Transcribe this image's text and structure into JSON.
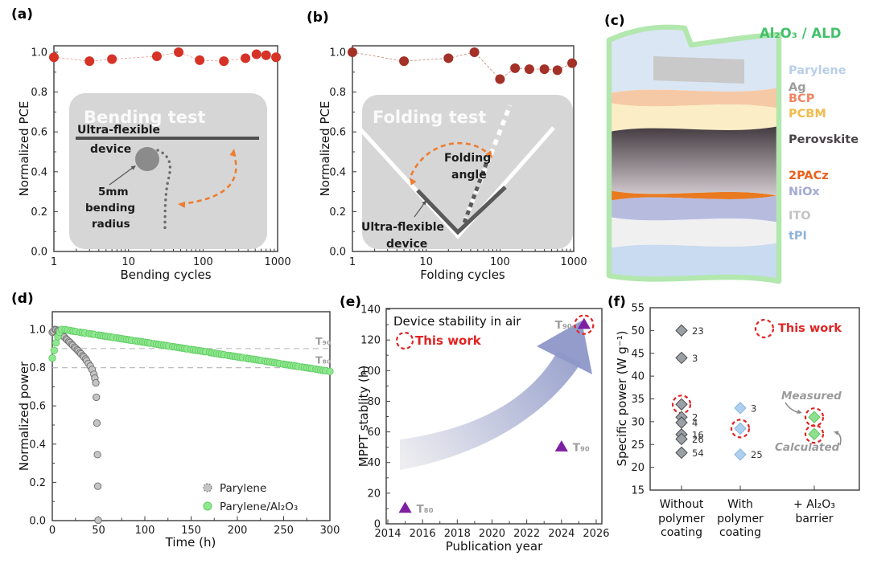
{
  "colors": {
    "accent": "#e02424",
    "frame": "#3c3c3c",
    "inset_bg": "#d6d6d6",
    "orange": "#ed7d31"
  },
  "chart_data": [
    {
      "id": "a",
      "type": "scatter",
      "letter": "(a)",
      "xlabel": "Bending cycles",
      "ylabel": "Normalized PCE",
      "xscale": "log",
      "xticks": [
        "1",
        "10",
        "100",
        "1000"
      ],
      "yticks": [
        "0.0",
        "0.2",
        "0.4",
        "0.6",
        "0.8",
        "1.0"
      ],
      "xlim": [
        1,
        1000
      ],
      "ylim": [
        0,
        1.03
      ],
      "point_color": "#d63226",
      "line_color": "#f0a098",
      "points": [
        [
          1,
          0.975
        ],
        [
          3,
          0.955
        ],
        [
          6,
          0.965
        ],
        [
          24,
          0.98
        ],
        [
          47,
          1.0
        ],
        [
          90,
          0.96
        ],
        [
          190,
          0.955
        ],
        [
          370,
          0.97
        ],
        [
          520,
          0.99
        ],
        [
          700,
          0.985
        ],
        [
          950,
          0.975
        ]
      ],
      "inset": {
        "title": "Bending test",
        "device1": "Ultra-flexible",
        "device2": "device",
        "r1": "5mm",
        "r2": "bending",
        "r3": "radius"
      }
    },
    {
      "id": "b",
      "type": "scatter",
      "letter": "(b)",
      "xlabel": "Folding cycles",
      "ylabel": "Normalized PCE",
      "xscale": "log",
      "xticks": [
        "1",
        "10",
        "100",
        "1000"
      ],
      "yticks": [
        "0.0",
        "0.2",
        "0.4",
        "0.6",
        "0.8",
        "1.0"
      ],
      "xlim": [
        1,
        1000
      ],
      "ylim": [
        0,
        1.03
      ],
      "point_color": "#a33127",
      "line_color": "#cf8d80",
      "points": [
        [
          1,
          1.0
        ],
        [
          5,
          0.955
        ],
        [
          20,
          0.97
        ],
        [
          45,
          1.0
        ],
        [
          100,
          0.865
        ],
        [
          160,
          0.92
        ],
        [
          250,
          0.915
        ],
        [
          400,
          0.915
        ],
        [
          600,
          0.91
        ],
        [
          950,
          0.945
        ]
      ],
      "inset": {
        "title": "Folding test",
        "a1": "Folding",
        "a2": "angle",
        "d1": "Ultra-flexible",
        "d2": "device"
      }
    },
    {
      "id": "c",
      "type": "diagram",
      "letter": "(c)",
      "border_label": "Al₂O₃ / ALD",
      "border_label_color": "#44c06a",
      "border_color": "#b2e7ae",
      "layers": [
        {
          "label": "Parylene",
          "label_color": "#b8cfe8",
          "fill": "#dae6f4"
        },
        {
          "label": "Ag",
          "label_color": "#9d9d9d",
          "fill": "#c9c9c9"
        },
        {
          "label": "BCP",
          "label_color": "#ef8663",
          "fill": "#f6c9a6"
        },
        {
          "label": "PCBM",
          "label_color": "#f2bb4b",
          "fill": "#fbeec6"
        },
        {
          "label": "Perovskite",
          "label_color": "#4a4449",
          "fill_top": "#423a3f",
          "fill_bottom": "#d3cbcf"
        },
        {
          "label": "2PACz",
          "label_color": "#e8611c",
          "fill": "#e97a20"
        },
        {
          "label": "NiOx",
          "label_color": "#a3aad6",
          "fill": "#b7bcdf"
        },
        {
          "label": "ITO",
          "label_color": "#c3c3c6",
          "fill": "#f0f0f1"
        },
        {
          "label": "tPI",
          "label_color": "#8fb3da",
          "fill": "#c8dbf0"
        }
      ]
    },
    {
      "id": "d",
      "type": "line",
      "letter": "(d)",
      "xlabel": "Time (h)",
      "ylabel": "Normalized power",
      "xticks": [
        "0",
        "50",
        "100",
        "150",
        "200",
        "250",
        "300"
      ],
      "yticks": [
        "0.0",
        "0.2",
        "0.4",
        "0.6",
        "0.8",
        "1.0"
      ],
      "xlim": [
        0,
        300
      ],
      "ylim": [
        0,
        1.09
      ],
      "hlines": [
        {
          "y": 0.9,
          "label": "T₉₀"
        },
        {
          "y": 0.8,
          "label": "T₈₀"
        }
      ],
      "series": [
        {
          "name": "Parylene",
          "color": "#c4c4c4",
          "edge": "#6e6e6e",
          "anchors": [
            [
              0,
              0.985
            ],
            [
              3,
              1.0
            ],
            [
              6,
              0.995
            ],
            [
              9,
              0.985
            ],
            [
              12,
              0.965
            ],
            [
              15,
              0.95
            ],
            [
              18,
              0.937
            ],
            [
              21,
              0.922
            ],
            [
              24,
              0.907
            ],
            [
              27,
              0.893
            ],
            [
              30,
              0.878
            ],
            [
              33,
              0.862
            ],
            [
              36,
              0.845
            ],
            [
              39,
              0.822
            ],
            [
              41,
              0.808
            ],
            [
              43,
              0.79
            ],
            [
              45,
              0.765
            ],
            [
              46,
              0.745
            ],
            [
              47,
              0.72
            ],
            [
              47.6,
              0.645
            ],
            [
              48.2,
              0.51
            ],
            [
              48.8,
              0.345
            ],
            [
              49.2,
              0.18
            ],
            [
              49.6,
              0.002
            ]
          ]
        },
        {
          "name": "Parylene/Al₂O₃",
          "color": "#8fe88f",
          "edge": "#63cc66",
          "anchors": [
            [
              0,
              0.85
            ],
            [
              2,
              0.89
            ],
            [
              4,
              0.93
            ],
            [
              6,
              0.962
            ],
            [
              8,
              0.985
            ],
            [
              10,
              1.0
            ],
            [
              14,
              0.999
            ],
            [
              20,
              0.993
            ],
            [
              30,
              0.985
            ],
            [
              40,
              0.978
            ],
            [
              50,
              0.97
            ],
            [
              70,
              0.955
            ],
            [
              90,
              0.94
            ],
            [
              110,
              0.925
            ],
            [
              130,
              0.91
            ],
            [
              150,
              0.895
            ],
            [
              170,
              0.88
            ],
            [
              190,
              0.864
            ],
            [
              210,
              0.849
            ],
            [
              230,
              0.834
            ],
            [
              250,
              0.818
            ],
            [
              270,
              0.803
            ],
            [
              285,
              0.792
            ],
            [
              300,
              0.78
            ]
          ]
        }
      ]
    },
    {
      "id": "e",
      "type": "scatter",
      "letter": "(e)",
      "xlabel": "Publication year",
      "ylabel": "MPPT stablity (h)",
      "note": "Device stability in air",
      "this_work": "This work",
      "xticks": [
        "2014",
        "2016",
        "2018",
        "2020",
        "2022",
        "2024",
        "2026"
      ],
      "yticks": [
        "0",
        "20",
        "40",
        "60",
        "80",
        "100",
        "120",
        "140"
      ],
      "xlim": [
        2014,
        2026
      ],
      "ylim": [
        0,
        140
      ],
      "triangle_color": "#7d1fa0",
      "arrow_colors": [
        "#ededf0",
        "#8d97c8"
      ],
      "points": [
        {
          "year": 2015,
          "value": 10,
          "label": "T₈₀",
          "side": "right",
          "circled": false
        },
        {
          "year": 2024,
          "value": 50,
          "label": "T₉₀",
          "side": "right",
          "circled": false
        },
        {
          "year": 2025.3,
          "value": 130,
          "label": "T₉₀",
          "side": "left",
          "circled": true
        }
      ]
    },
    {
      "id": "f",
      "type": "scatter",
      "letter": "(f)",
      "ylabel": "Specific power (W g⁻¹)",
      "yticks": [
        "15",
        "20",
        "25",
        "30",
        "35",
        "40",
        "45",
        "50",
        "55"
      ],
      "ylim": [
        15,
        55
      ],
      "this_work": "This work",
      "annotations": [
        "Measured",
        "Calculated"
      ],
      "categories": [
        {
          "lines": [
            "Without",
            "polymer",
            "coating"
          ],
          "marker_fill": "#9aa0a6",
          "marker_edge": "#4a4a4a",
          "points": [
            {
              "v": 50,
              "label": "23"
            },
            {
              "v": 44,
              "label": "3"
            },
            {
              "v": 33.8,
              "circled": true
            },
            {
              "v": 31,
              "label": "2"
            },
            {
              "v": 29.8,
              "label": "4"
            },
            {
              "v": 27.2,
              "label": "16"
            },
            {
              "v": 26.2,
              "label": "26"
            },
            {
              "v": 23.2,
              "label": "54"
            }
          ]
        },
        {
          "lines": [
            "With",
            "polymer",
            "coating"
          ],
          "marker_fill": "#aed0ee",
          "marker_edge": "#86b6e0",
          "points": [
            {
              "v": 33,
              "label": "3"
            },
            {
              "v": 28.5,
              "circled": true
            },
            {
              "v": 22.8,
              "label": "25"
            }
          ]
        },
        {
          "lines": [
            "+ Al₂O₃",
            "barrier"
          ],
          "marker_fill": "#8ee08e",
          "marker_edge": "#5bc35b",
          "points": [
            {
              "v": 31,
              "circled": true
            },
            {
              "v": 27.3,
              "circled": true
            }
          ]
        }
      ]
    }
  ]
}
